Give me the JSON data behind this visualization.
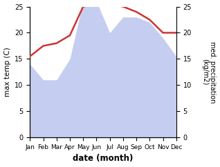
{
  "months": [
    "Jan",
    "Feb",
    "Mar",
    "Apr",
    "May",
    "Jun",
    "Jul",
    "Aug",
    "Sep",
    "Oct",
    "Nov",
    "Dec"
  ],
  "x": [
    0,
    1,
    2,
    3,
    4,
    5,
    6,
    7,
    8,
    9,
    10,
    11
  ],
  "max_temp": [
    15.5,
    17.5,
    18.0,
    19.5,
    25.0,
    25.5,
    25.5,
    25.0,
    24.0,
    22.5,
    20.0,
    20.0
  ],
  "precipitation": [
    14,
    11,
    11,
    15,
    26,
    26,
    20,
    23,
    23,
    22,
    19,
    15.5
  ],
  "temp_color": "#cc3333",
  "precip_fill_color": "#c5cef0",
  "background_color": "#ffffff",
  "ylabel_left": "max temp (C)",
  "ylabel_right": "med. precipitation\n(kg/m2)",
  "xlabel": "date (month)",
  "ylim": [
    0,
    25
  ],
  "ylim_right": [
    0,
    25
  ]
}
